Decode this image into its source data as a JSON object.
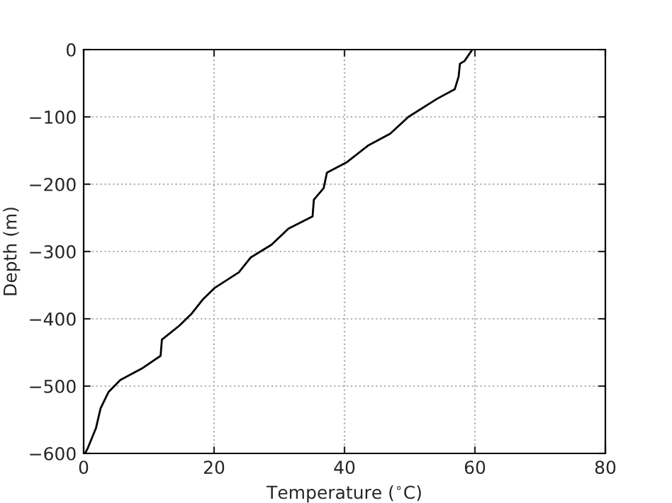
{
  "chart_data": {
    "type": "line",
    "xlabel": "Temperature ($^{∘}$C)",
    "ylabel": "Depth (m)",
    "x": [
      59.6,
      58.4,
      57.7,
      57.5,
      56.9,
      54.2,
      49.8,
      47.0,
      43.7,
      40.4,
      37.3,
      36.8,
      35.3,
      35.1,
      31.4,
      28.8,
      25.6,
      23.8,
      20.1,
      18.3,
      16.5,
      14.7,
      12.0,
      11.8,
      8.9,
      5.6,
      3.8,
      2.6,
      1.9,
      0.6,
      0.2
    ],
    "series": [
      {
        "color": "#000000",
        "values": [
          0,
          -17,
          -21,
          -40,
          -59,
          -73,
          -100,
          -125,
          -142,
          -167,
          -183,
          -206,
          -223,
          -248,
          -266,
          -290,
          -309,
          -331,
          -354,
          -371,
          -393,
          -410,
          -431,
          -455,
          -474,
          -491,
          -509,
          -533,
          -562,
          -593,
          -600
        ]
      }
    ],
    "xlim": [
      0,
      80
    ],
    "xticks": [
      0,
      20,
      40,
      60,
      80
    ],
    "ylim": [
      -600,
      0
    ],
    "yticks": [
      {
        "value": -600,
        "label": "−600"
      },
      {
        "value": -500,
        "label": "−500"
      },
      {
        "value": -400,
        "label": "−400"
      },
      {
        "value": -300,
        "label": "−300"
      },
      {
        "value": -200,
        "label": "−200"
      },
      {
        "value": -100,
        "label": "−100"
      },
      0
    ],
    "grid": true,
    "line_style": "solid"
  }
}
